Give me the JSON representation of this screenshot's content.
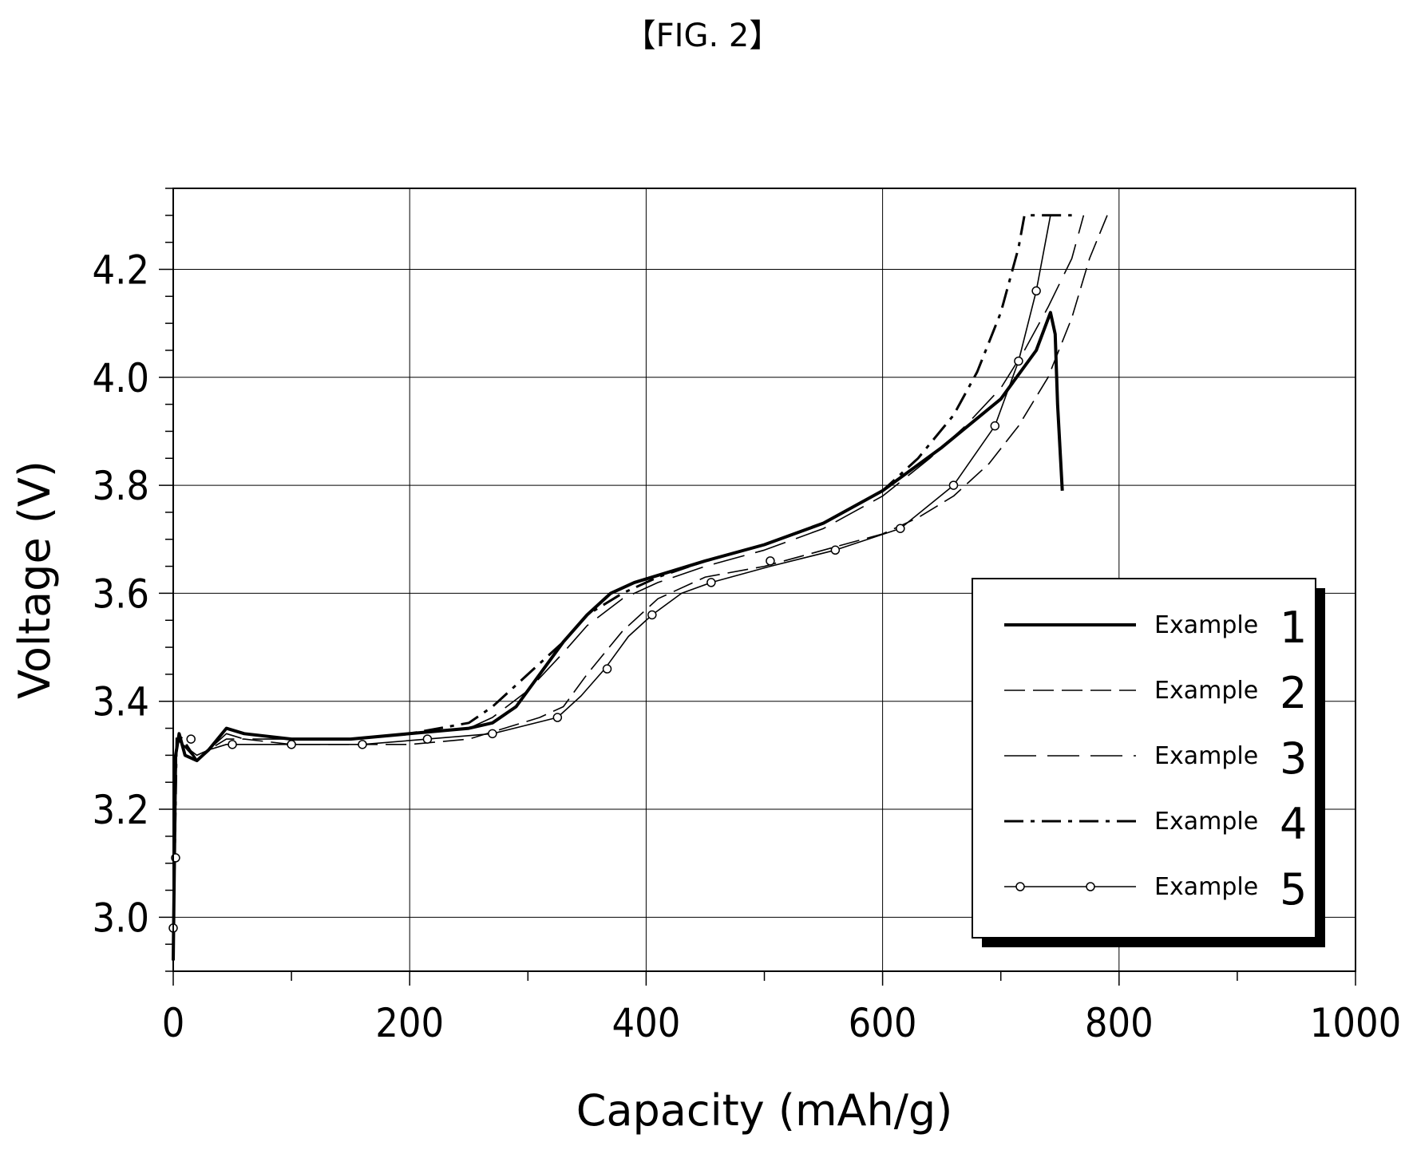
{
  "figure_label": "【FIG. 2】",
  "chart_data": {
    "type": "line",
    "xlabel": "Capacity (mAh/g)",
    "ylabel": "Voltage (V)",
    "xlim": [
      0,
      1000
    ],
    "ylim": [
      2.9,
      4.35
    ],
    "x_ticks": [
      0,
      200,
      400,
      600,
      800,
      1000
    ],
    "y_ticks": [
      3.0,
      3.2,
      3.4,
      3.6,
      3.8,
      4.0,
      4.2
    ],
    "x_tick_labels": [
      "0",
      "200",
      "400",
      "600",
      "800",
      "1000"
    ],
    "y_tick_labels": [
      "3.0",
      "3.2",
      "3.4",
      "3.6",
      "3.8",
      "4.0",
      "4.2"
    ],
    "grid": true,
    "legend_position": "lower-right",
    "series": [
      {
        "name": "Example 1",
        "legend_text": "Example",
        "legend_num": "1",
        "style": "thick-solid",
        "x": [
          0,
          2,
          5,
          10,
          20,
          30,
          45,
          60,
          100,
          150,
          200,
          250,
          270,
          290,
          310,
          330,
          350,
          370,
          390,
          420,
          450,
          500,
          550,
          600,
          650,
          700,
          730,
          742,
          746,
          748,
          752
        ],
        "y": [
          2.92,
          3.3,
          3.34,
          3.3,
          3.29,
          3.31,
          3.35,
          3.34,
          3.33,
          3.33,
          3.34,
          3.35,
          3.36,
          3.39,
          3.45,
          3.51,
          3.56,
          3.6,
          3.62,
          3.64,
          3.66,
          3.69,
          3.73,
          3.79,
          3.87,
          3.96,
          4.05,
          4.12,
          4.08,
          3.95,
          3.79
        ]
      },
      {
        "name": "Example 2",
        "legend_text": "Example",
        "legend_num": "2",
        "style": "thin-dash",
        "x": [
          0,
          3,
          8,
          20,
          30,
          45,
          60,
          100,
          150,
          200,
          250,
          280,
          310,
          330,
          350,
          380,
          410,
          450,
          500,
          550,
          600,
          630,
          660,
          690,
          715,
          740,
          760,
          775,
          790
        ],
        "y": [
          2.95,
          3.33,
          3.32,
          3.29,
          3.31,
          3.33,
          3.33,
          3.32,
          3.32,
          3.32,
          3.33,
          3.35,
          3.37,
          3.39,
          3.45,
          3.53,
          3.59,
          3.63,
          3.65,
          3.68,
          3.71,
          3.74,
          3.78,
          3.84,
          3.91,
          4.0,
          4.11,
          4.22,
          4.3
        ]
      },
      {
        "name": "Example 3",
        "legend_text": "Example",
        "legend_num": "3",
        "style": "long-dash",
        "x": [
          0,
          3,
          8,
          20,
          30,
          45,
          60,
          100,
          150,
          200,
          250,
          270,
          300,
          330,
          350,
          380,
          410,
          450,
          500,
          550,
          600,
          640,
          670,
          700,
          720,
          740,
          760,
          770
        ],
        "y": [
          2.95,
          3.33,
          3.32,
          3.29,
          3.31,
          3.34,
          3.33,
          3.33,
          3.33,
          3.34,
          3.35,
          3.37,
          3.42,
          3.49,
          3.54,
          3.59,
          3.62,
          3.65,
          3.68,
          3.72,
          3.78,
          3.85,
          3.91,
          3.98,
          4.05,
          4.13,
          4.22,
          4.3
        ]
      },
      {
        "name": "Example 4",
        "legend_text": "Example",
        "legend_num": "4",
        "style": "dash-dot",
        "x": [
          0,
          3,
          8,
          20,
          30,
          45,
          60,
          100,
          150,
          200,
          250,
          270,
          300,
          330,
          350,
          380,
          410,
          450,
          500,
          550,
          600,
          630,
          660,
          680,
          700,
          715,
          720,
          760
        ],
        "y": [
          2.95,
          3.34,
          3.33,
          3.29,
          3.31,
          3.35,
          3.34,
          3.33,
          3.33,
          3.34,
          3.36,
          3.39,
          3.45,
          3.51,
          3.56,
          3.6,
          3.63,
          3.66,
          3.69,
          3.73,
          3.79,
          3.85,
          3.93,
          4.01,
          4.12,
          4.24,
          4.3,
          4.3
        ]
      },
      {
        "name": "Example 5",
        "legend_text": "Example",
        "legend_num": "5",
        "style": "circle-markers",
        "x": [
          0,
          3,
          8,
          20,
          30,
          45,
          60,
          100,
          160,
          215,
          270,
          325,
          345,
          365,
          385,
          405,
          430,
          455,
          505,
          560,
          615,
          660,
          695,
          715,
          730,
          742
        ],
        "y": [
          2.95,
          3.33,
          3.32,
          3.3,
          3.31,
          3.32,
          3.32,
          3.32,
          3.32,
          3.33,
          3.34,
          3.37,
          3.41,
          3.46,
          3.52,
          3.56,
          3.6,
          3.62,
          3.65,
          3.68,
          3.72,
          3.8,
          3.91,
          4.03,
          4.16,
          4.3
        ],
        "marker_x": [
          0,
          2,
          15,
          50,
          100,
          160,
          215,
          270,
          325,
          367,
          405,
          455,
          505,
          560,
          615,
          660,
          695,
          715,
          730
        ],
        "marker_y": [
          2.98,
          3.11,
          3.33,
          3.32,
          3.32,
          3.32,
          3.33,
          3.34,
          3.37,
          3.46,
          3.56,
          3.62,
          3.66,
          3.68,
          3.72,
          3.8,
          3.91,
          4.03,
          4.16
        ]
      }
    ]
  }
}
